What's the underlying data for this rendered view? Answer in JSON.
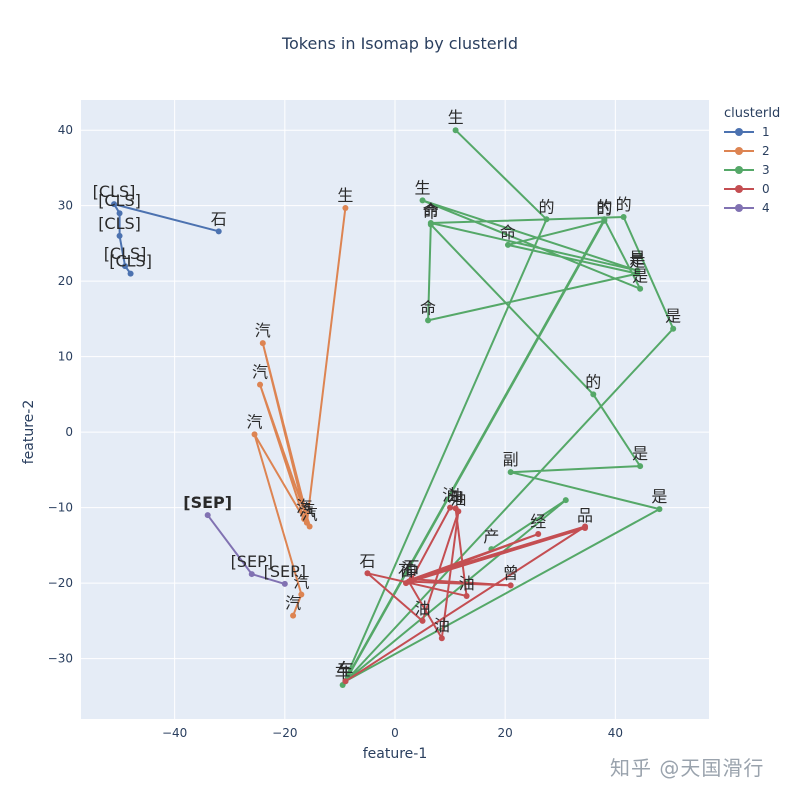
{
  "chart_data": {
    "type": "line",
    "title": "Tokens in Isomap by clusterId",
    "xlabel": "feature-1",
    "ylabel": "feature-2",
    "xlim": [
      -57,
      57
    ],
    "ylim": [
      -38,
      44
    ],
    "xticks": [
      -40,
      -20,
      0,
      20,
      40
    ],
    "yticks": [
      -30,
      -20,
      -10,
      0,
      10,
      20,
      30,
      40
    ],
    "grid": true,
    "background": "#e5ecf6",
    "legend_title": "clusterId",
    "legend_position": "right",
    "series": [
      {
        "name": "1",
        "color": "#4c72b0",
        "points": [
          {
            "x": -32,
            "y": 26.6,
            "label": "石"
          },
          {
            "x": -51,
            "y": 30.2,
            "label": "[CLS]"
          },
          {
            "x": -50,
            "y": 29.0,
            "label": "[CLS]"
          },
          {
            "x": -50,
            "y": 26.0,
            "label": "[CLS]"
          },
          {
            "x": -49,
            "y": 22.0,
            "label": "[CLS]"
          },
          {
            "x": -48,
            "y": 21.0,
            "label": "[CLS]"
          }
        ]
      },
      {
        "name": "2",
        "color": "#dd8452",
        "points": [
          {
            "x": -9,
            "y": 29.7,
            "label": "生"
          },
          {
            "x": -16,
            "y": -12.0,
            "label": "汽"
          },
          {
            "x": -24,
            "y": 11.8,
            "label": "汽"
          },
          {
            "x": -15.5,
            "y": -12.5,
            "label": "汽"
          },
          {
            "x": -24.5,
            "y": 6.3,
            "label": "汽"
          },
          {
            "x": -16.5,
            "y": -11.5,
            "label": "汽"
          },
          {
            "x": -25.5,
            "y": -0.3,
            "label": "汽"
          },
          {
            "x": -17,
            "y": -21.5,
            "label": "汽"
          },
          {
            "x": -18.5,
            "y": -24.3,
            "label": "汽"
          }
        ]
      },
      {
        "name": "3",
        "color": "#55a868",
        "points": [
          {
            "x": 11,
            "y": 40.0,
            "label": "生"
          },
          {
            "x": 27.5,
            "y": 28.2,
            "label": "的"
          },
          {
            "x": -9.5,
            "y": -33.5,
            "label": "车"
          },
          {
            "x": 38,
            "y": 28.2,
            "label": "的"
          },
          {
            "x": 44.5,
            "y": 19.0,
            "label": "是"
          },
          {
            "x": 5,
            "y": 30.7,
            "label": "生"
          },
          {
            "x": 44,
            "y": 21.4,
            "label": "是"
          },
          {
            "x": 6.5,
            "y": 27.7,
            "label": "命"
          },
          {
            "x": 41.5,
            "y": 28.5,
            "label": "的"
          },
          {
            "x": 50.5,
            "y": 13.7,
            "label": "是"
          },
          {
            "x": -9,
            "y": -33.0,
            "label": "车"
          },
          {
            "x": 38,
            "y": 28.0,
            "label": "的"
          },
          {
            "x": 20.5,
            "y": 24.8,
            "label": "命"
          },
          {
            "x": 44,
            "y": 21.0,
            "label": "是"
          },
          {
            "x": 6,
            "y": 14.8,
            "label": "命"
          },
          {
            "x": 6.5,
            "y": 27.5,
            "label": "命"
          },
          {
            "x": 36,
            "y": 5.0,
            "label": "的"
          },
          {
            "x": 44.5,
            "y": -4.5,
            "label": "是"
          },
          {
            "x": 21,
            "y": -5.3,
            "label": "副"
          },
          {
            "x": 48,
            "y": -10.2,
            "label": "是"
          },
          {
            "x": -9,
            "y": -33.0,
            "label": "车"
          },
          {
            "x": 31,
            "y": -9.0,
            "label": ""
          },
          {
            "x": 17.5,
            "y": -15.5,
            "label": "产"
          }
        ]
      },
      {
        "name": "0",
        "color": "#c44e52",
        "points": [
          {
            "x": 34.5,
            "y": -12.7,
            "label": "品"
          },
          {
            "x": 2,
            "y": -20.0,
            "label": "石"
          },
          {
            "x": 26,
            "y": -13.5,
            "label": "经"
          },
          {
            "x": 3,
            "y": -19.5,
            "label": "石"
          },
          {
            "x": 10,
            "y": -10.0,
            "label": "油"
          },
          {
            "x": 11,
            "y": -10.1,
            "label": "油"
          },
          {
            "x": 13,
            "y": -21.7,
            "label": "油"
          },
          {
            "x": -5,
            "y": -18.7,
            "label": "石"
          },
          {
            "x": 5,
            "y": -25.0,
            "label": "油"
          },
          {
            "x": 11.5,
            "y": -10.5,
            "label": "油"
          },
          {
            "x": 8.5,
            "y": -27.3,
            "label": "油"
          },
          {
            "x": 2.5,
            "y": -19.8,
            "label": "油"
          },
          {
            "x": 21,
            "y": -20.3,
            "label": "曾"
          },
          {
            "x": 3,
            "y": -19.5,
            "label": "石"
          },
          {
            "x": 34.5,
            "y": -12.5,
            "label": ""
          },
          {
            "x": -9,
            "y": -33.0,
            "label": "车"
          }
        ]
      },
      {
        "name": "4",
        "color": "#8172b2",
        "points": [
          {
            "x": -34,
            "y": -11.0,
            "label": "[SEP]",
            "bold": true
          },
          {
            "x": -26,
            "y": -18.8,
            "label": "[SEP]"
          },
          {
            "x": -20,
            "y": -20.1,
            "label": "[SEP]"
          }
        ]
      }
    ]
  },
  "legend": {
    "title": "clusterId"
  },
  "watermark": "知乎 @天国滑行"
}
